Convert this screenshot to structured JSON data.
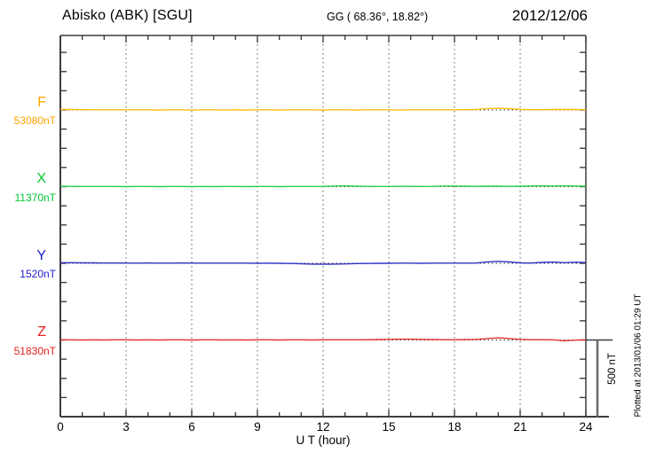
{
  "header": {
    "title": "Abisko (ABK)  [SGU]",
    "coords": "GG ( 68.36°,  18.82°)",
    "date": "2012/12/06"
  },
  "plotted_note": "Plotted at 2013/01/06 01:29 UT",
  "scale_bar": {
    "label": "500 nT",
    "span_nT": 500
  },
  "axes": {
    "xlabel": "U T (hour)",
    "x_tick_labels": [
      "0",
      "3",
      "6",
      "9",
      "12",
      "15",
      "18",
      "21",
      "24"
    ],
    "x_tick_hours": [
      0,
      3,
      6,
      9,
      12,
      15,
      18,
      21,
      24
    ],
    "grid_hours": [
      3,
      6,
      9,
      12,
      15,
      18,
      21
    ],
    "axis_color": "#3d3d3d",
    "grid_color": "#5a5a5a",
    "baseline_dot_color": "#2e2e2e"
  },
  "chart_data": {
    "type": "line",
    "title": "Abisko (ABK) [SGU] magnetogram, 2012/12/06",
    "xlabel": "U T (hour)",
    "xlim": [
      0,
      24
    ],
    "row_separation_nT": 500,
    "grid": "dotted, every 3 hours vertical; dotted horizontal baseline per component",
    "x_hours": [
      0,
      0.5,
      1,
      1.5,
      2,
      2.5,
      3,
      3.5,
      4,
      4.5,
      5,
      5.5,
      6,
      6.5,
      7,
      7.5,
      8,
      8.5,
      9,
      9.5,
      10,
      10.5,
      11,
      11.5,
      12,
      12.5,
      13,
      13.5,
      14,
      14.5,
      15,
      15.5,
      16,
      16.5,
      17,
      17.5,
      18,
      18.5,
      19,
      19.5,
      20,
      20.5,
      21,
      21.5,
      22,
      22.5,
      23,
      23.5,
      24
    ],
    "series": [
      {
        "name": "F",
        "base_label": "53080nT",
        "base_value": 53080,
        "label_color": "#FFA300",
        "trace_color": "#FFBE0A",
        "deviation_nT": [
          3,
          3,
          2,
          1,
          1,
          1,
          1,
          1,
          1,
          0,
          1,
          1,
          0,
          1,
          1,
          0,
          1,
          0,
          1,
          1,
          0,
          1,
          1,
          1,
          0,
          1,
          1,
          0,
          1,
          1,
          1,
          0,
          1,
          1,
          1,
          1,
          1,
          2,
          3,
          9,
          11,
          8,
          4,
          2,
          2,
          3,
          3,
          3,
          2
        ]
      },
      {
        "name": "X",
        "base_label": "11370nT",
        "base_value": 11370,
        "label_color": "#00C832",
        "trace_color": "#28D24B",
        "deviation_nT": [
          2,
          2,
          1,
          1,
          1,
          1,
          0,
          1,
          1,
          0,
          1,
          1,
          0,
          1,
          0,
          1,
          1,
          0,
          1,
          1,
          0,
          1,
          1,
          1,
          2,
          4,
          5,
          3,
          2,
          1,
          1,
          2,
          2,
          1,
          2,
          4,
          4,
          3,
          2,
          3,
          3,
          2,
          3,
          4,
          5,
          4,
          5,
          4,
          3
        ]
      },
      {
        "name": "Y",
        "base_label": "1520nT",
        "base_value": 1520,
        "label_color": "#1E1ECD",
        "trace_color": "#3232C8",
        "deviation_nT": [
          4,
          4,
          3,
          3,
          2,
          2,
          2,
          1,
          2,
          1,
          1,
          2,
          1,
          1,
          1,
          1,
          1,
          1,
          0,
          1,
          0,
          -1,
          -3,
          -5,
          -6,
          -5,
          -4,
          -2,
          -1,
          0,
          0,
          1,
          1,
          0,
          1,
          1,
          1,
          1,
          2,
          9,
          13,
          9,
          3,
          2,
          6,
          8,
          4,
          7,
          5
        ]
      },
      {
        "name": "Z",
        "base_label": "51830nT",
        "base_value": 51830,
        "label_color": "#E61E1E",
        "trace_color": "#E63232",
        "deviation_nT": [
          1,
          1,
          0,
          1,
          0,
          1,
          1,
          0,
          1,
          0,
          1,
          1,
          0,
          1,
          1,
          0,
          1,
          0,
          1,
          1,
          0,
          1,
          1,
          0,
          1,
          1,
          1,
          1,
          2,
          3,
          4,
          5,
          5,
          4,
          3,
          2,
          2,
          3,
          4,
          10,
          14,
          10,
          4,
          2,
          2,
          1,
          -5,
          -1,
          1
        ]
      }
    ]
  }
}
